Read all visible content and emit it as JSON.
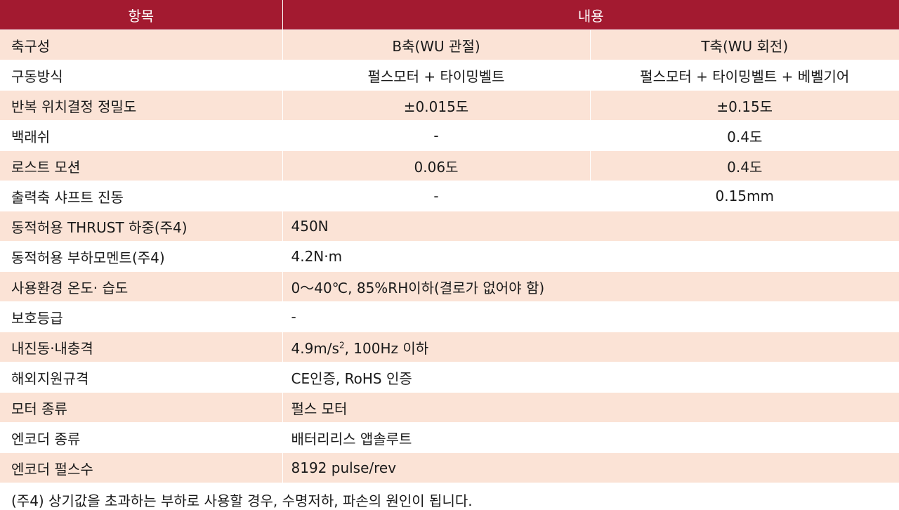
{
  "header": {
    "col_item": "항목",
    "col_content": "내용"
  },
  "rows": [
    {
      "label": "축구성",
      "b": "B축(WU 관절)",
      "t": "T축(WU 회전)"
    },
    {
      "label": "구동방식",
      "b": "펄스모터 + 타이밍벨트",
      "t": "펄스모터 + 타이밍벨트 + 베벨기어"
    },
    {
      "label": "반복 위치결정 정밀도",
      "b": "±0.015도",
      "t": "±0.15도"
    },
    {
      "label": "백래쉬",
      "b": "-",
      "t": "0.4도"
    },
    {
      "label": "로스트 모션",
      "b": "0.06도",
      "t": "0.4도"
    },
    {
      "label": "출력축 샤프트 진동",
      "b": "-",
      "t": "0.15mm"
    },
    {
      "label": "동적허용 THRUST 하중(주4)",
      "value": "450N"
    },
    {
      "label": "동적허용 부하모멘트(주4)",
      "value": "4.2N·m"
    },
    {
      "label": "사용환경 온도· 습도",
      "value": "0～40℃, 85%RH이하(결로가 없어야 함)"
    },
    {
      "label": "보호등급",
      "value": "-"
    },
    {
      "label": "내진동·내충격",
      "value_a": "4.9m/s",
      "value_sup": "2",
      "value_b": ", 100Hz 이하"
    },
    {
      "label": "해외지원규격",
      "value": "CE인증, RoHS 인증"
    },
    {
      "label": "모터 종류",
      "value": "펄스 모터"
    },
    {
      "label": "엔코더 종류",
      "value": "배터리리스 앱솔루트"
    },
    {
      "label": "엔코더 펄스수",
      "value": "8192 pulse/rev"
    }
  ],
  "footnote": "(주4) 상기값을 초과하는 부하로 사용할 경우, 수명저하, 파손의 원인이 됩니다.",
  "colors": {
    "header": "#a31a30",
    "stripe": "#fbe3d6"
  }
}
